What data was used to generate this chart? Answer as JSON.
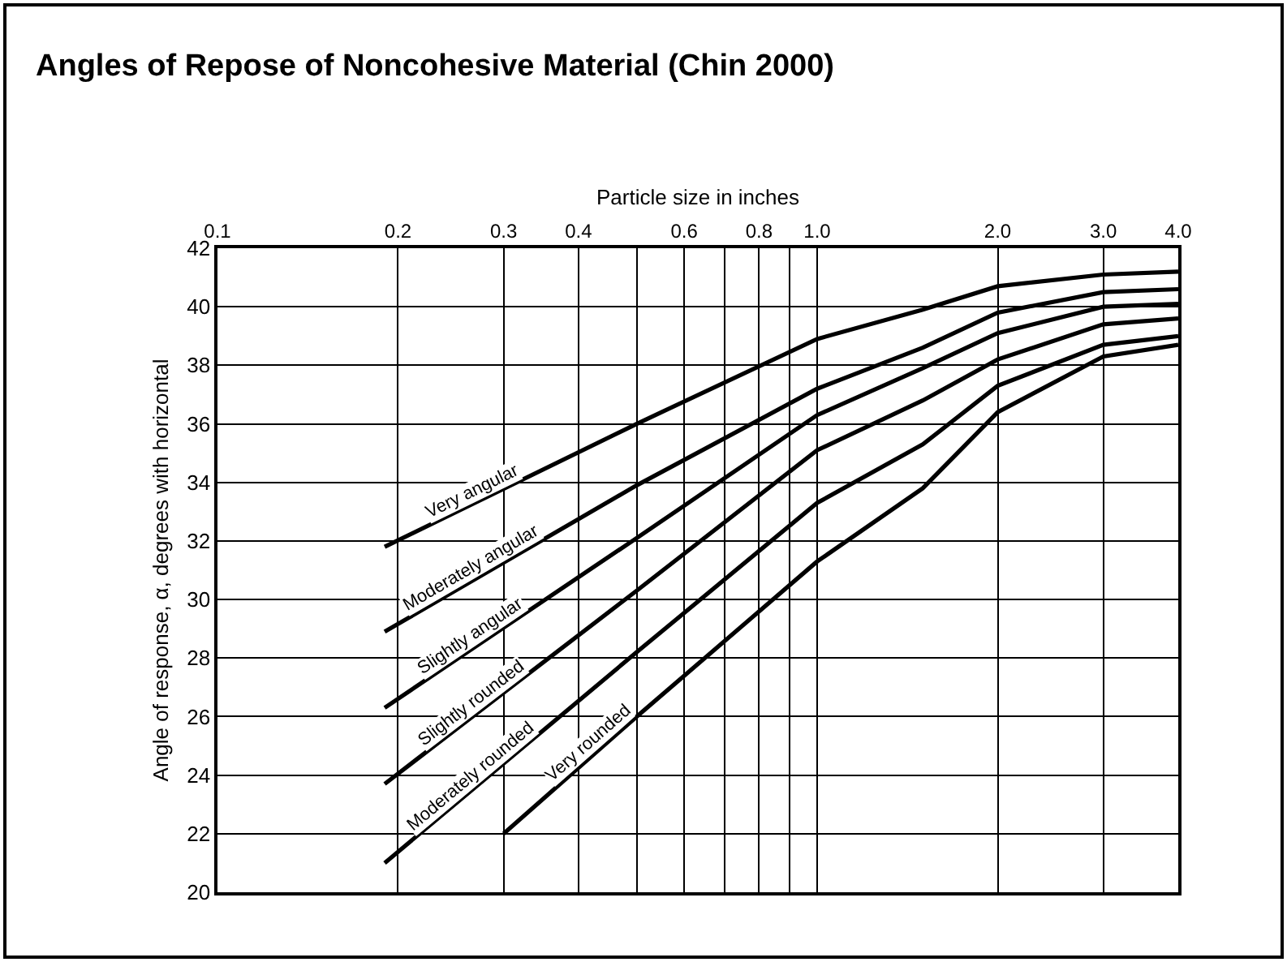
{
  "chart_data": {
    "type": "line",
    "title": "Angles of Repose of Noncohesive Material (Chin 2000)",
    "xlabel": "Particle size in inches",
    "ylabel": "Angle of response, α, degrees with horizontal",
    "log": "x",
    "grid": true,
    "legend": false,
    "marker": "none",
    "line_style": "solid",
    "xlim": [
      0.1,
      4
    ],
    "ylim": [
      20,
      42
    ],
    "xticks": [
      0.1,
      0.2,
      0.3,
      0.4,
      {
        "value": 0.5,
        "label": null
      },
      0.6,
      {
        "value": 0.7,
        "label": null
      },
      0.8,
      {
        "value": 0.9,
        "label": null
      },
      {
        "value": 1,
        "label": "1.0"
      },
      {
        "value": 2,
        "label": "2.0"
      },
      {
        "value": 3,
        "label": "3.0"
      },
      {
        "value": 4,
        "label": "4.0"
      }
    ],
    "yticks": [
      20,
      22,
      24,
      26,
      28,
      30,
      32,
      34,
      36,
      38,
      40,
      42
    ],
    "series": [
      {
        "name": "Very angular",
        "color": "#000000",
        "x": [
          0.19,
          0.5,
          1,
          1.5,
          2,
          3,
          4
        ],
        "values": [
          31.8,
          36.0,
          38.9,
          39.9,
          40.7,
          41.1,
          41.2
        ]
      },
      {
        "name": "Moderately angular",
        "color": "#000000",
        "x": [
          0.19,
          0.5,
          1,
          1.5,
          2,
          3,
          4
        ],
        "values": [
          28.9,
          33.9,
          37.2,
          38.6,
          39.8,
          40.5,
          40.6
        ]
      },
      {
        "name": "Slightly angular",
        "color": "#000000",
        "x": [
          0.19,
          0.5,
          1,
          1.5,
          2,
          3,
          4
        ],
        "values": [
          26.3,
          32.1,
          36.3,
          37.9,
          39.1,
          40.0,
          40.1
        ]
      },
      {
        "name": "Slightly rounded",
        "color": "#000000",
        "x": [
          0.19,
          0.5,
          1,
          1.5,
          2,
          3,
          4
        ],
        "values": [
          23.7,
          30.3,
          35.1,
          36.8,
          38.2,
          39.4,
          39.6
        ]
      },
      {
        "name": "Moderately rounded",
        "color": "#000000",
        "x": [
          0.19,
          0.5,
          1,
          1.5,
          2,
          3,
          4
        ],
        "values": [
          21.0,
          28.2,
          33.3,
          35.3,
          37.3,
          38.7,
          39.0
        ]
      },
      {
        "name": "Very rounded",
        "color": "#000000",
        "x": [
          0.3,
          0.5,
          1,
          1.5,
          2,
          3,
          4
        ],
        "values": [
          22.0,
          26.0,
          31.3,
          33.8,
          36.4,
          38.3,
          38.7
        ]
      }
    ]
  }
}
